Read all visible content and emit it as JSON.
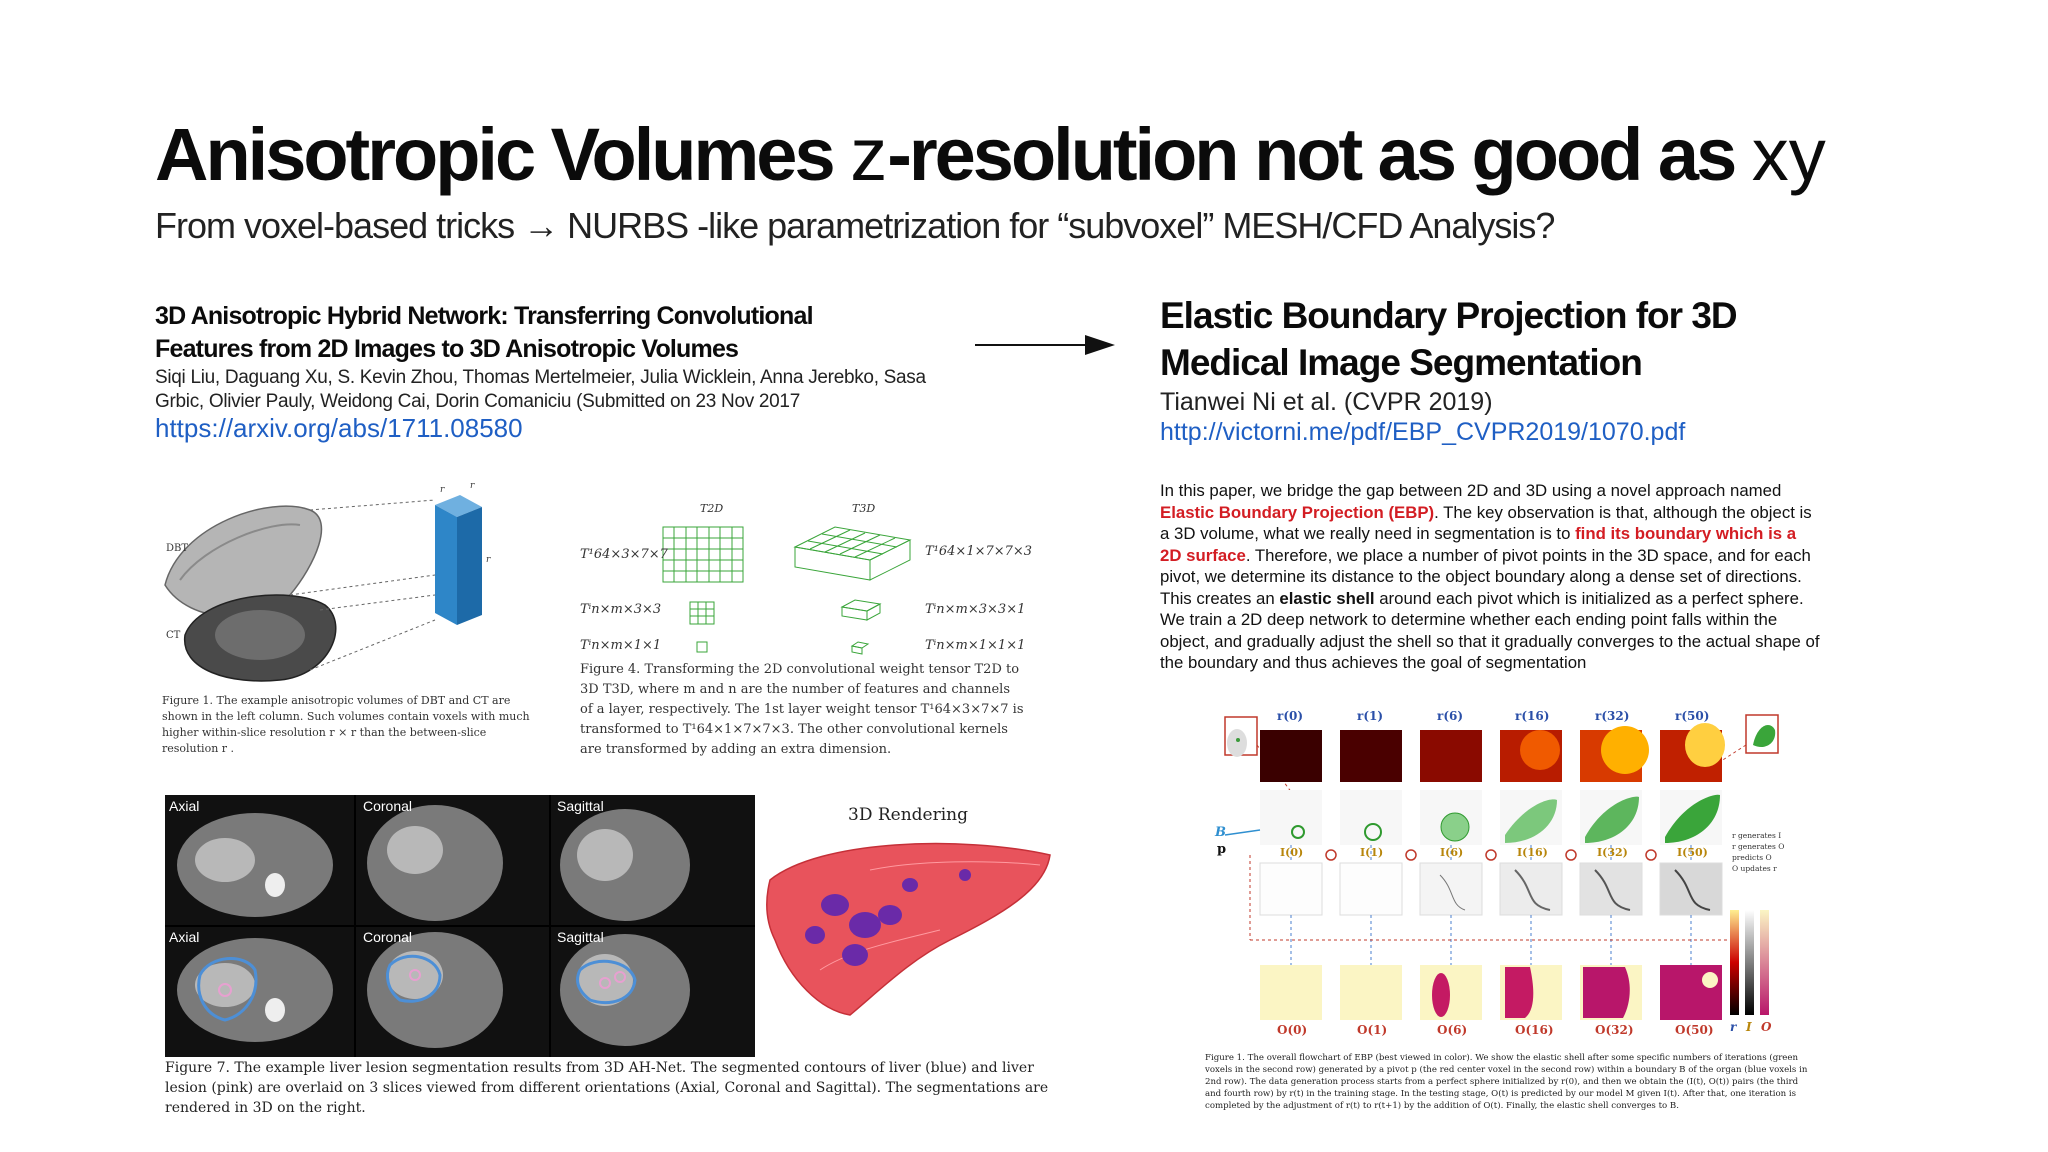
{
  "slide": {
    "title_bold": "Anisotropic Volumes",
    "title_z": "z",
    "title_mid": "-resolution not as good as",
    "title_xy": "xy",
    "subtitle": "From voxel-based tricks  → NURBS -like parametrization for “subvoxel” MESH/CFD Analysis?"
  },
  "left_paper": {
    "title": "3D Anisotropic Hybrid Network: Transferring Convolutional Features from 2D Images to 3D Anisotropic Volumes",
    "authors": "Siqi Liu, Daguang Xu, S. Kevin Zhou, Thomas Mertelmeier, Julia Wicklein, Anna Jerebko, Sasa Grbic, Olivier Pauly, Weidong Cai, Dorin Comaniciu (Submitted on 23 Nov 2017",
    "link": "https://arxiv.org/abs/1711.08580",
    "fig1": {
      "label_dbt": "DBT",
      "label_ct": "CT",
      "label_rx": "r",
      "label_ry": "r",
      "label_rz": "r",
      "caption": "Figure 1. The example anisotropic volumes of DBT and CT are shown in the left column. Such volumes contain voxels with much higher within-slice resolution r  × r  than the between-slice resolution r ."
    },
    "fig4": {
      "t2d": "T2D",
      "t3d": "T3D",
      "k1": "T¹64×3×7×7",
      "k2": "T¹64×1×7×7×3",
      "k3": "Tⁱn×m×3×3",
      "k4": "Tⁱn×m×3×3×1",
      "k5": "Tⁱn×m×1×1",
      "k6": "Tⁱn×m×1×1×1",
      "caption": "Figure 4. Transforming the 2D convolutional weight tensor T2D to 3D T3D, where m and n are the number of features and channels of a layer, respectively. The 1st layer weight tensor T¹64×3×7×7 is transformed to T¹64×1×7×7×3. The other convolutional kernels are transformed by adding an extra dimension."
    },
    "fig7": {
      "axial": "Axial",
      "coronal": "Coronal",
      "sagittal": "Sagittal",
      "rendering": "3D Rendering",
      "caption": "Figure 7. The example liver lesion segmentation results from 3D AH-Net. The segmented contours of liver (blue) and liver lesion (pink) are overlaid on 3 slices viewed from different orientations (Axial, Coronal and Sagittal). The segmentations are rendered in 3D on the right."
    }
  },
  "right_paper": {
    "title": "Elastic Boundary Projection for 3D Medical Image Segmentation",
    "authors": "Tianwei Ni et al. (CVPR 2019)",
    "link": "http://victorni.me/pdf/EBP_CVPR2019/1070.pdf",
    "abstract_1": "In this paper, we bridge the gap between 2D and 3D using a novel approach named ",
    "abstract_hl1": "Elastic Boundary Projection (EBP)",
    "abstract_2": ". The key observation is that, although the object is a 3D volume, what we really need in segmentation is to ",
    "abstract_hl2": "find its boundary which is a 2D surface",
    "abstract_3": ". Therefore, we place a number of pivot points in the 3D space, and for each pivot, we determine its distance to the object boundary along a dense set of directions. This creates an ",
    "abstract_bold": "elastic shell",
    "abstract_4": " around each pivot which is initialized as a perfect sphere. We train a 2D deep network to determine whether each ending point falls within the object, and gradually adjust the shell so that it gradually converges to the actual shape of the boundary and thus achieves the goal of segmentation",
    "figure": {
      "r_labels": [
        "r(0)",
        "r(1)",
        "r(6)",
        "r(16)",
        "r(32)",
        "r(50)"
      ],
      "i_labels": [
        "I(0)",
        "I(1)",
        "I(6)",
        "I(16)",
        "I(32)",
        "I(50)"
      ],
      "o_labels": [
        "O(0)",
        "O(1)",
        "O(6)",
        "O(16)",
        "O(32)",
        "O(50)"
      ],
      "label_b": "B",
      "label_p": "p",
      "legend": [
        "r generates I",
        "r generates O",
        "predicts O",
        "O updates r"
      ],
      "bar_labels": [
        "r",
        "I",
        "O"
      ],
      "caption": "Figure 1. The overall flowchart of EBP (best viewed in color). We show the elastic shell after some specific numbers of iterations (green voxels in the second row) generated by a pivot p (the red center voxel in the second row) within a boundary B of the organ (blue voxels in 2nd row). The data generation process starts from a perfect sphere initialized by r(0), and then we obtain the (I(t), O(t)) pairs (the third and fourth row) by r(t) in the training stage. In the testing stage, O(t) is predicted by our model M given I(t). After that, one iteration is completed by the adjustment of r(t) to r(t+1) by the addition of O(t). Finally, the elastic shell converges to B."
    }
  },
  "colors": {
    "link": "#1f5fc4",
    "highlight": "#d31d23"
  }
}
